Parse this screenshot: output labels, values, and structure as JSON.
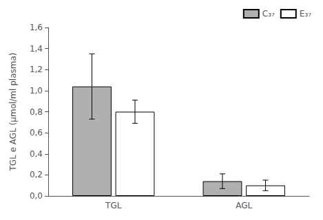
{
  "chart_data": {
    "type": "bar",
    "categories": [
      "TGL",
      "AGL"
    ],
    "series": [
      {
        "name": "C₃₇",
        "color": "#b0b0b0",
        "values": [
          1.04,
          0.14
        ],
        "errors": [
          0.31,
          0.07
        ]
      },
      {
        "name": "E₃₇",
        "color": "#ffffff",
        "values": [
          0.8,
          0.1
        ],
        "errors": [
          0.11,
          0.05
        ]
      }
    ],
    "ylabel": "TGL e AGL (μmol/ml plasma)",
    "ylim": [
      0,
      1.6
    ],
    "yticks": [
      {
        "value": 0.0,
        "label": "0,0"
      },
      {
        "value": 0.2,
        "label": "0,2"
      },
      {
        "value": 0.4,
        "label": "0,4"
      },
      {
        "value": 0.6,
        "label": "0,6"
      },
      {
        "value": 0.8,
        "label": "0,8"
      },
      {
        "value": 1.0,
        "label": "1,0"
      },
      {
        "value": 1.2,
        "label": "1,2"
      },
      {
        "value": 1.4,
        "label": "1,4"
      },
      {
        "value": 1.6,
        "label": "1,6"
      }
    ],
    "legend": "upper right",
    "grid": false
  }
}
